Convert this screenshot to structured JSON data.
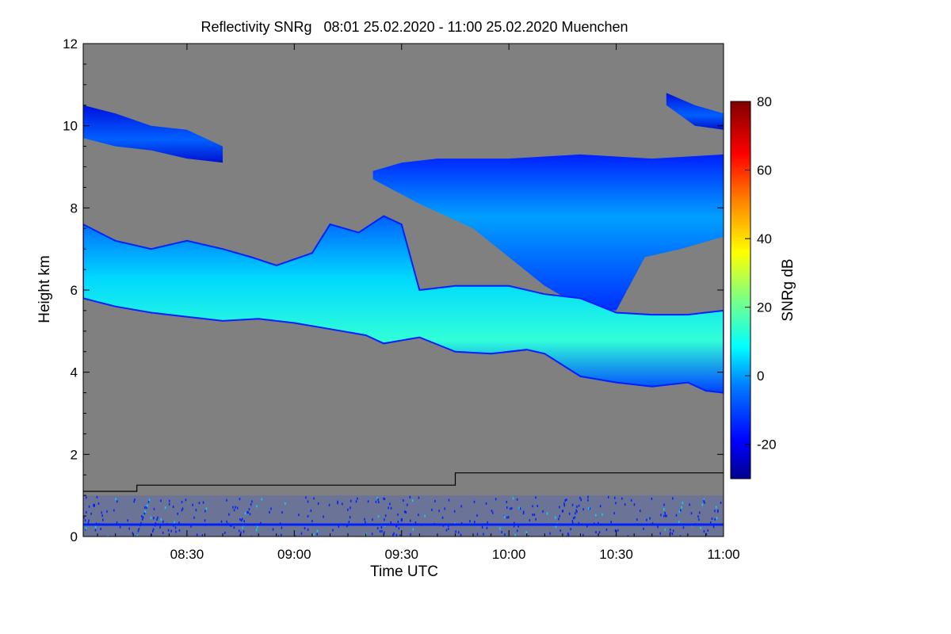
{
  "chart_data": {
    "type": "heatmap",
    "title": "Reflectivity SNRg   08:01 25.02.2020 - 11:00 25.02.2020 Muenchen",
    "xlabel": "Time UTC",
    "ylabel": "Height km",
    "colorbar_label": "SNRg dB",
    "xlim_minutes_utc": [
      481,
      660
    ],
    "ylim_km": [
      0,
      12
    ],
    "x_ticks": [
      {
        "label": "08:30",
        "minutes": 510
      },
      {
        "label": "09:00",
        "minutes": 540
      },
      {
        "label": "09:30",
        "minutes": 570
      },
      {
        "label": "10:00",
        "minutes": 600
      },
      {
        "label": "10:30",
        "minutes": 630
      },
      {
        "label": "11:00",
        "minutes": 660
      }
    ],
    "y_ticks": [
      {
        "label": "0",
        "km": 0
      },
      {
        "label": "2",
        "km": 2
      },
      {
        "label": "4",
        "km": 4
      },
      {
        "label": "6",
        "km": 6
      },
      {
        "label": "8",
        "km": 8
      },
      {
        "label": "10",
        "km": 10
      },
      {
        "label": "12",
        "km": 12
      }
    ],
    "colorbar": {
      "range_db": [
        -30,
        80
      ],
      "ticks": [
        {
          "label": "80",
          "db": 80
        },
        {
          "label": "60",
          "db": 60
        },
        {
          "label": "40",
          "db": 40
        },
        {
          "label": "20",
          "db": 20
        },
        {
          "label": "0",
          "db": 0
        },
        {
          "label": "-20",
          "db": -20
        }
      ]
    },
    "background_color": "#808080",
    "colors": {
      "low": "#00008f",
      "blue": "#0020ff",
      "cyan": "#00d8ff",
      "aqua": "#20ffe0",
      "green": "#80ff80",
      "yellow": "#ffff00",
      "red": "#ff0000",
      "high": "#800000"
    },
    "main_cloud_base_km": [
      {
        "t": 481,
        "km": 5.8
      },
      {
        "t": 490,
        "km": 5.6
      },
      {
        "t": 500,
        "km": 5.45
      },
      {
        "t": 510,
        "km": 5.35
      },
      {
        "t": 520,
        "km": 5.25
      },
      {
        "t": 530,
        "km": 5.3
      },
      {
        "t": 540,
        "km": 5.2
      },
      {
        "t": 550,
        "km": 5.05
      },
      {
        "t": 560,
        "km": 4.9
      },
      {
        "t": 565,
        "km": 4.7
      },
      {
        "t": 575,
        "km": 4.85
      },
      {
        "t": 585,
        "km": 4.5
      },
      {
        "t": 595,
        "km": 4.45
      },
      {
        "t": 605,
        "km": 4.55
      },
      {
        "t": 610,
        "km": 4.45
      },
      {
        "t": 620,
        "km": 3.9
      },
      {
        "t": 630,
        "km": 3.75
      },
      {
        "t": 640,
        "km": 3.65
      },
      {
        "t": 650,
        "km": 3.75
      },
      {
        "t": 655,
        "km": 3.55
      },
      {
        "t": 660,
        "km": 3.5
      }
    ],
    "main_cloud_top_km": [
      {
        "t": 481,
        "km": 7.6
      },
      {
        "t": 490,
        "km": 7.2
      },
      {
        "t": 500,
        "km": 7.0
      },
      {
        "t": 510,
        "km": 7.2
      },
      {
        "t": 520,
        "km": 7.0
      },
      {
        "t": 528,
        "km": 6.8
      },
      {
        "t": 535,
        "km": 6.6
      },
      {
        "t": 545,
        "km": 6.9
      },
      {
        "t": 550,
        "km": 7.6
      },
      {
        "t": 558,
        "km": 7.4
      },
      {
        "t": 565,
        "km": 7.8
      },
      {
        "t": 570,
        "km": 7.6
      },
      {
        "t": 575,
        "km": 6.0
      },
      {
        "t": 585,
        "km": 6.1
      },
      {
        "t": 600,
        "km": 6.1
      },
      {
        "t": 610,
        "km": 5.9
      },
      {
        "t": 620,
        "km": 5.8
      },
      {
        "t": 630,
        "km": 5.45
      },
      {
        "t": 640,
        "km": 5.4
      },
      {
        "t": 650,
        "km": 5.4
      },
      {
        "t": 660,
        "km": 5.5
      }
    ],
    "upper_cloud_base_km": [
      {
        "t": 562,
        "km": 8.7
      },
      {
        "t": 575,
        "km": 8.1
      },
      {
        "t": 590,
        "km": 7.5
      },
      {
        "t": 600,
        "km": 6.8
      },
      {
        "t": 610,
        "km": 6.1
      },
      {
        "t": 620,
        "km": 5.6
      },
      {
        "t": 630,
        "km": 5.5
      },
      {
        "t": 638,
        "km": 6.8
      },
      {
        "t": 648,
        "km": 7.0
      },
      {
        "t": 660,
        "km": 7.3
      }
    ],
    "upper_cloud_top_km": [
      {
        "t": 562,
        "km": 8.9
      },
      {
        "t": 570,
        "km": 9.1
      },
      {
        "t": 580,
        "km": 9.2
      },
      {
        "t": 600,
        "km": 9.2
      },
      {
        "t": 620,
        "km": 9.3
      },
      {
        "t": 640,
        "km": 9.2
      },
      {
        "t": 660,
        "km": 9.3
      }
    ],
    "left_cirrus_base_km": [
      {
        "t": 481,
        "km": 9.7
      },
      {
        "t": 490,
        "km": 9.5
      },
      {
        "t": 500,
        "km": 9.4
      },
      {
        "t": 510,
        "km": 9.2
      },
      {
        "t": 520,
        "km": 9.1
      }
    ],
    "left_cirrus_top_km": [
      {
        "t": 481,
        "km": 10.5
      },
      {
        "t": 490,
        "km": 10.3
      },
      {
        "t": 500,
        "km": 10.0
      },
      {
        "t": 510,
        "km": 9.9
      },
      {
        "t": 520,
        "km": 9.5
      }
    ],
    "right_cirrus_base_km": [
      {
        "t": 644,
        "km": 10.5
      },
      {
        "t": 652,
        "km": 10.0
      },
      {
        "t": 660,
        "km": 9.9
      }
    ],
    "right_cirrus_top_km": [
      {
        "t": 644,
        "km": 10.8
      },
      {
        "t": 652,
        "km": 10.5
      },
      {
        "t": 660,
        "km": 10.3
      }
    ],
    "mixing_layer_km": [
      {
        "t": 481,
        "km": 1.1
      },
      {
        "t": 496,
        "km": 1.1
      },
      {
        "t": 496,
        "km": 1.25
      },
      {
        "t": 585,
        "km": 1.25
      },
      {
        "t": 585,
        "km": 1.55
      },
      {
        "t": 660,
        "km": 1.55
      }
    ],
    "ground_clutter_top_km": 1.0
  }
}
